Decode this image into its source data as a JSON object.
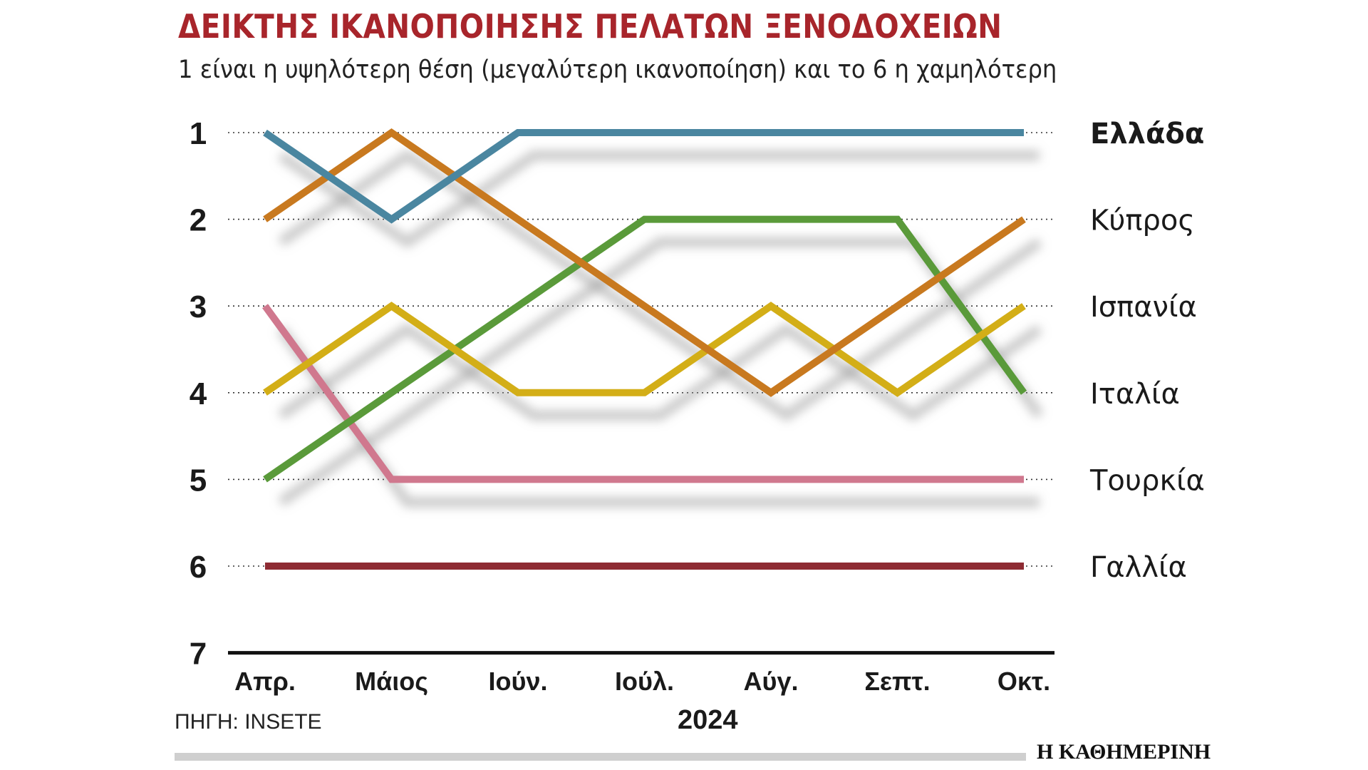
{
  "header": {
    "title": "ΔΕΙΚΤΗΣ ΙΚΑΝΟΠΟΙΗΣΗΣ ΠΕΛΑΤΩΝ ΞΕΝΟΔΟΧΕΙΩΝ",
    "subtitle": "1 είναι η υψηλότερη θέση (μεγαλύτερη ικανοποίηση) και το 6 η χαμηλότερη"
  },
  "footer": {
    "source": "ΠΗΓΗ: INSETE",
    "brand": "Η ΚΑΘΗΜΕΡΙΝΗ"
  },
  "chart_data": {
    "type": "line",
    "title": "ΔΕΙΚΤΗΣ ΙΚΑΝΟΠΟΙΗΣΗΣ ΠΕΛΑΤΩΝ ΞΕΝΟΔΟΧΕΙΩΝ",
    "subtitle": "1 είναι η υψηλότερη θέση (μεγαλύτερη ικανοποίηση) και το 6 η χαμηλότερη",
    "categories": [
      "Απρ.",
      "Μάιος",
      "Ιούν.",
      "Ιούλ.",
      "Αύγ.",
      "Σεπτ.",
      "Οκτ."
    ],
    "xlabel": "2024",
    "ylabel": "",
    "y_ticks": [
      "1",
      "2",
      "3",
      "4",
      "5",
      "6",
      "7"
    ],
    "ylim": [
      1,
      7
    ],
    "y_inverted": true,
    "grid": "dotted horizontal",
    "legend": "right, labels at line ends",
    "series": [
      {
        "name": "Ελλάδα",
        "color": "#4a86a0",
        "bold": true,
        "values": [
          1,
          2,
          1,
          1,
          1,
          1,
          1
        ]
      },
      {
        "name": "Κύπρος",
        "color": "#c8791f",
        "bold": false,
        "values": [
          2,
          1,
          2,
          3,
          4,
          3,
          2
        ]
      },
      {
        "name": "Ισπανία",
        "color": "#d3ae17",
        "bold": false,
        "values": [
          4,
          3,
          4,
          4,
          3,
          4,
          3
        ]
      },
      {
        "name": "Ιταλία",
        "color": "#5a9a3a",
        "bold": false,
        "values": [
          5,
          4,
          3,
          2,
          2,
          2,
          4
        ]
      },
      {
        "name": "Τουρκία",
        "color": "#d0788e",
        "bold": false,
        "values": [
          3,
          5,
          5,
          5,
          5,
          5,
          5
        ]
      },
      {
        "name": "Γαλλία",
        "color": "#8e2b33",
        "bold": false,
        "values": [
          6,
          6,
          6,
          6,
          6,
          6,
          6
        ]
      }
    ]
  }
}
